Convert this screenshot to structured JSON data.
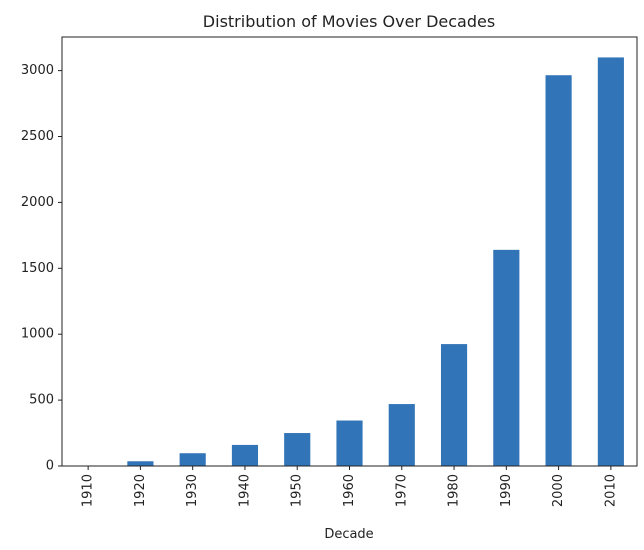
{
  "chart_data": {
    "type": "bar",
    "title": "Distribution of Movies Over Decades",
    "xlabel": "Decade",
    "ylabel": "",
    "categories": [
      "1910",
      "1920",
      "1930",
      "1940",
      "1950",
      "1960",
      "1970",
      "1980",
      "1990",
      "2000",
      "2010"
    ],
    "values": [
      3,
      36,
      97,
      160,
      250,
      345,
      470,
      925,
      1640,
      2965,
      3100
    ],
    "ylim": [
      0,
      3255
    ],
    "yticks": [
      0,
      500,
      1000,
      1500,
      2000,
      2500,
      3000
    ],
    "bar_color": "#3274b8",
    "grid": false,
    "legend": "none"
  }
}
